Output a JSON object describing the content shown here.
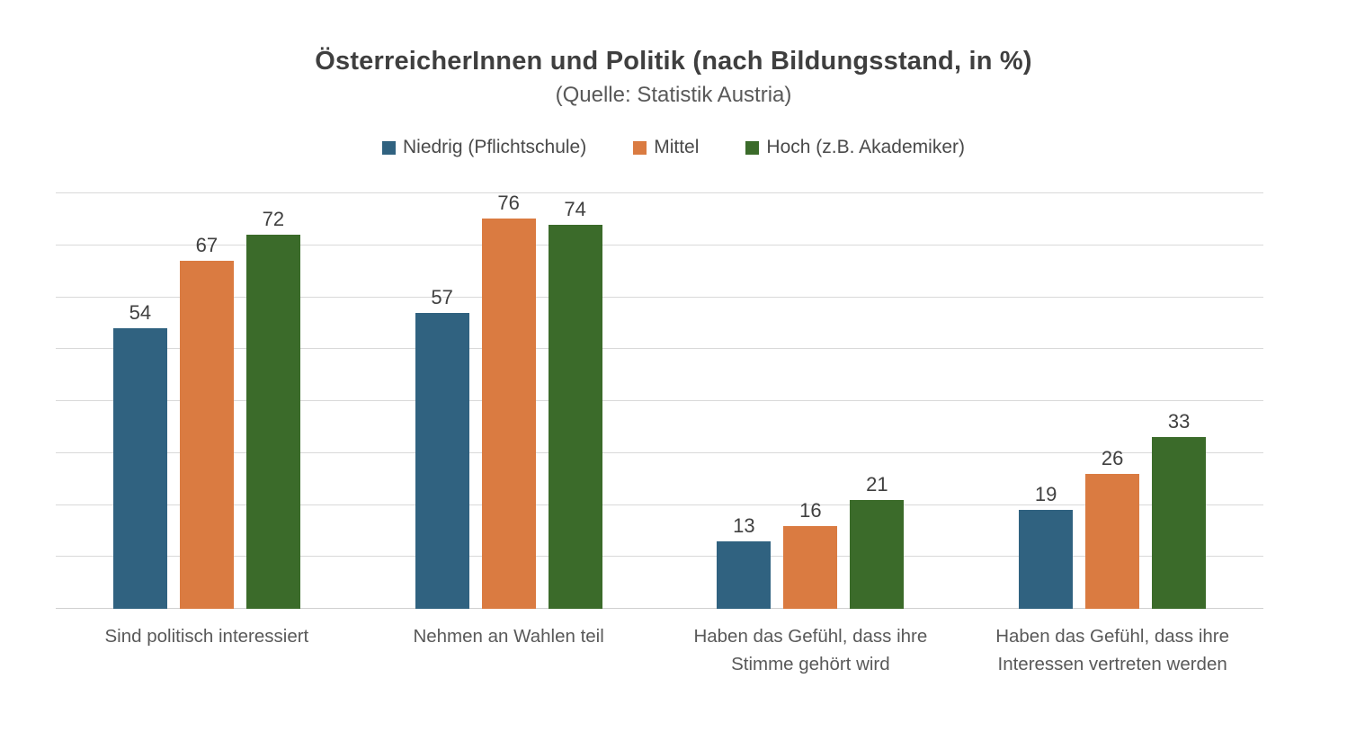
{
  "header": {
    "title": "ÖsterreicherInnen und Politik (nach Bildungsstand, in %)",
    "subtitle": "(Quelle: Statistik Austria)"
  },
  "legend": {
    "items": [
      {
        "label": "Niedrig (Pflichtschule)",
        "color": "#306280"
      },
      {
        "label": "Mittel",
        "color": "#da7b41"
      },
      {
        "label": "Hoch (z.B. Akademiker)",
        "color": "#3b6b2a"
      }
    ]
  },
  "colors": {
    "series_niedrig": "#306280",
    "series_mittel": "#da7b41",
    "series_hoch": "#3b6b2a",
    "gridline": "#d9d9d9",
    "title_text": "#3f3f3f",
    "value_label_text": "#404040",
    "category_text": "#595959"
  },
  "chart_data": {
    "type": "bar",
    "title": "ÖsterreicherInnen und Politik (nach Bildungsstand, in %)",
    "subtitle": "(Quelle: Statistik Austria)",
    "categories": [
      "Sind politisch interessiert",
      "Nehmen an Wahlen teil",
      "Haben das Gefühl, dass ihre Stimme gehört wird",
      "Haben das Gefühl, dass ihre Interessen vertreten werden"
    ],
    "series": [
      {
        "name": "Niedrig (Pflichtschule)",
        "color": "#306280",
        "values": [
          54,
          57,
          13,
          19
        ]
      },
      {
        "name": "Mittel",
        "color": "#da7b41",
        "values": [
          67,
          76,
          16,
          26
        ]
      },
      {
        "name": "Hoch (z.B. Akademiker)",
        "color": "#3b6b2a",
        "values": [
          72,
          74,
          21,
          33
        ]
      }
    ],
    "ylim": [
      0,
      80
    ],
    "gridline_step": 10,
    "grid": true,
    "y_axis_labels_visible": false,
    "legend_position": "top",
    "data_labels": true
  }
}
